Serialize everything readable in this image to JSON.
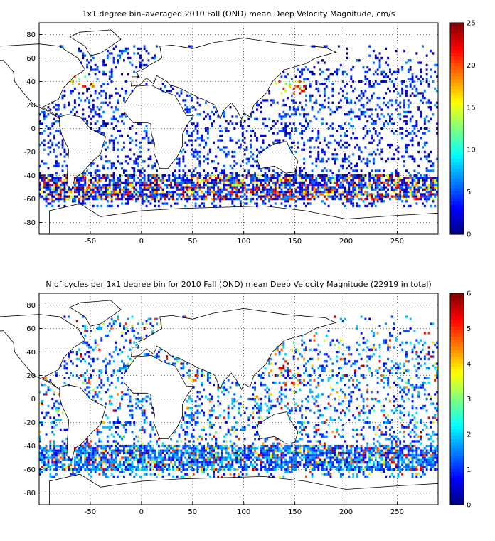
{
  "colors": {
    "land": "#ffffff",
    "frame": "#000000",
    "grid": "#000000"
  },
  "chart_data": [
    {
      "type": "heatmap",
      "title": "1x1 degree bin–averaged 2010 Fall (OND) mean Deep Velocity Magnitude, cm/s",
      "xlim": [
        -100,
        290
      ],
      "ylim": [
        -90,
        90
      ],
      "x_ticks": [
        -50,
        0,
        50,
        100,
        150,
        200,
        250
      ],
      "y_ticks": [
        80,
        60,
        40,
        20,
        0,
        -20,
        -40,
        -60,
        -80
      ],
      "grid": true,
      "colormap": "jet",
      "colorbar": {
        "min": 0,
        "max": 25,
        "ticks": [
          0,
          5,
          10,
          15,
          20,
          25
        ],
        "placement": "right"
      },
      "values_note": "scattered 1x1 degree ocean bins; most bins 0–8 cm/s (blue), high values 15–25 cm/s (yellow–red) along the Antarctic Circumpolar Current near 40–60°S, Kuroshio near 30–40°N and Gulf Stream near 35–45°N"
    },
    {
      "type": "heatmap",
      "title": "N of cycles per 1x1 degree bin for 2010 Fall (OND) mean Deep Velocity Magnitude (22919 in total)",
      "xlim": [
        -100,
        290
      ],
      "ylim": [
        -90,
        90
      ],
      "x_ticks": [
        -50,
        0,
        50,
        100,
        150,
        200,
        250
      ],
      "y_ticks": [
        80,
        60,
        40,
        20,
        0,
        -20,
        -40,
        -60,
        -80
      ],
      "grid": true,
      "colormap": "jet",
      "colorbar": {
        "min": 0,
        "max": 6,
        "ticks": [
          0,
          1,
          2,
          3,
          4,
          5,
          6
        ],
        "placement": "right"
      },
      "total_cycles": 22919,
      "values_note": "most bins hold 1–2 cycles (blue–cyan); 3–6 cycles (yellow–red) scattered, denser in the western North Pacific and Atlantic"
    }
  ]
}
